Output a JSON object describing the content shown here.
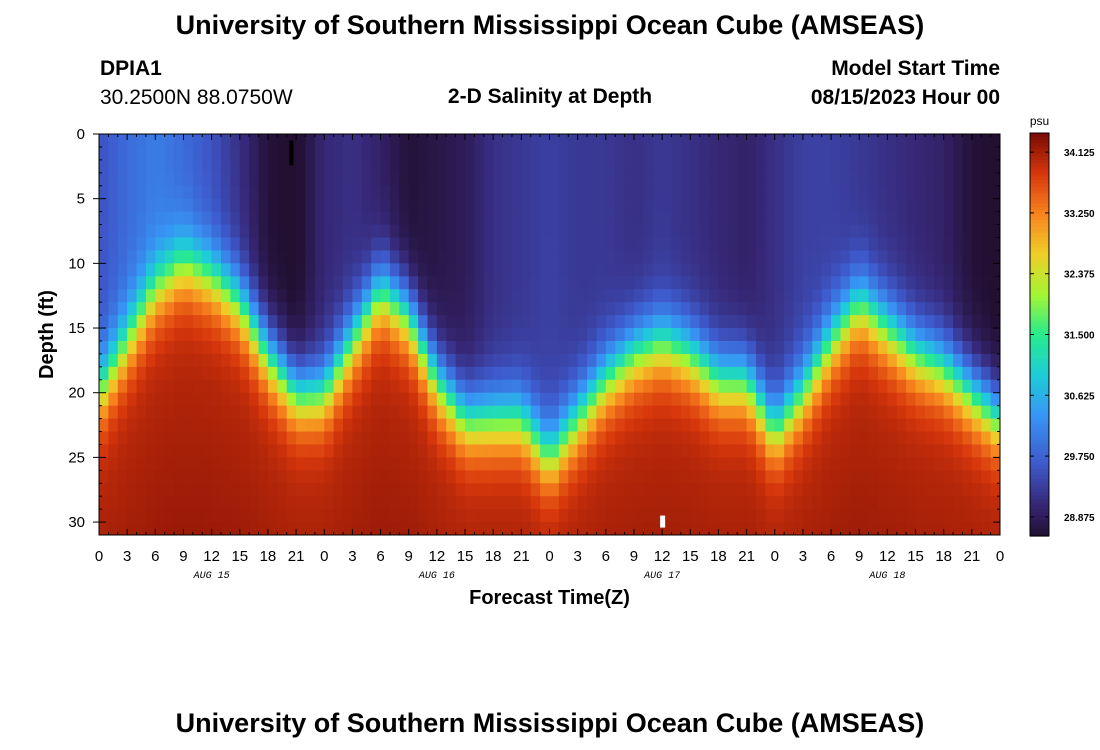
{
  "header": {
    "title": "University of Southern Mississippi Ocean Cube (AMSEAS)",
    "station_id": "DPIA1",
    "station_coords": "30.2500N  88.0750W",
    "chart_title": "2-D Salinity at Depth",
    "model_start_label": "Model Start Time",
    "model_start_value": "08/15/2023 Hour 00"
  },
  "footer": {
    "title": "University of Southern Mississippi Ocean Cube (AMSEAS)"
  },
  "chart_data": {
    "type": "heatmap",
    "title": "2-D Salinity at Depth",
    "xlabel": "Forecast Time(Z)",
    "ylabel": "Depth (ft)",
    "x_hours_range": [
      0,
      96
    ],
    "y_range": [
      0,
      31
    ],
    "x_tick_labels": [
      "0",
      "3",
      "6",
      "9",
      "12",
      "15",
      "18",
      "21",
      "0",
      "3",
      "6",
      "9",
      "12",
      "15",
      "18",
      "21",
      "0",
      "3",
      "6",
      "9",
      "12",
      "15",
      "18",
      "21",
      "0",
      "3",
      "6",
      "9",
      "12",
      "15",
      "18",
      "21",
      "0"
    ],
    "day_labels": [
      {
        "label": "AUG 15",
        "hour": 12
      },
      {
        "label": "AUG 16",
        "hour": 36
      },
      {
        "label": "AUG 17",
        "hour": 60
      },
      {
        "label": "AUG 18",
        "hour": 84
      }
    ],
    "y_tick_labels": [
      "0",
      "5",
      "10",
      "15",
      "20",
      "25",
      "30"
    ],
    "y_tick_values": [
      0,
      5,
      10,
      15,
      20,
      25,
      30
    ],
    "colorbar": {
      "unit": "psu",
      "range": [
        28.6,
        34.4
      ],
      "labels": [
        "34.125",
        "33.250",
        "32.375",
        "31.500",
        "30.625",
        "29.750",
        "28.875"
      ],
      "values": [
        34.125,
        33.25,
        32.375,
        31.5,
        30.625,
        29.75,
        28.875
      ]
    },
    "halocline_depth_ft": {
      "hours": [
        0,
        3,
        6,
        9,
        12,
        15,
        18,
        21,
        24,
        27,
        30,
        33,
        36,
        39,
        42,
        45,
        48,
        51,
        54,
        57,
        60,
        63,
        66,
        69,
        72,
        75,
        78,
        81,
        84,
        87,
        90,
        93,
        96
      ],
      "depth": [
        20,
        16,
        12,
        10,
        11,
        13,
        17,
        20,
        20,
        16,
        12,
        14,
        19,
        22,
        22,
        22,
        25,
        22,
        19,
        17,
        16,
        17,
        19,
        19,
        23,
        20,
        16,
        13,
        15,
        17,
        18,
        20,
        22
      ]
    },
    "surface_salinity_psu": {
      "hours": [
        0,
        3,
        6,
        9,
        12,
        15,
        18,
        21,
        24,
        27,
        30,
        33,
        36,
        39,
        42,
        45,
        48,
        51,
        54,
        57,
        60,
        63,
        66,
        69,
        72,
        75,
        78,
        81,
        84,
        87,
        90,
        93,
        96
      ],
      "value": [
        29.8,
        30.1,
        30.3,
        30.1,
        29.8,
        29.4,
        28.9,
        28.8,
        29.3,
        29.4,
        29.2,
        28.9,
        29.0,
        29.1,
        29.4,
        29.5,
        29.6,
        29.5,
        29.5,
        29.4,
        29.5,
        29.4,
        29.3,
        29.2,
        29.4,
        29.6,
        29.6,
        29.5,
        29.4,
        29.3,
        29.2,
        28.9,
        28.8
      ]
    },
    "bottom_salinity_psu": 34.2
  }
}
